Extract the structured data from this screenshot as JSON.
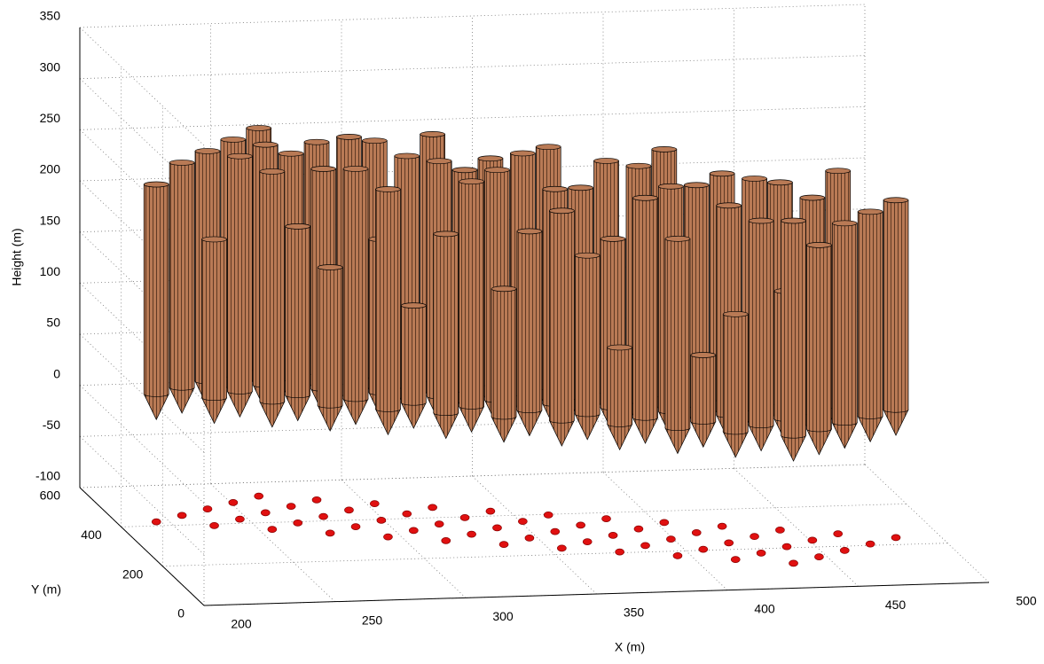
{
  "chart_data": {
    "type": "cylinders3d",
    "x_label": "X (m)",
    "y_label": "Y (m)",
    "z_label": "Height (m)",
    "xlim": [
      200,
      500
    ],
    "ylim": [
      0,
      600
    ],
    "zlim": [
      -100,
      350
    ],
    "xticks": [
      200,
      250,
      300,
      350,
      400,
      450,
      500
    ],
    "yticks": [
      0,
      200,
      400,
      600
    ],
    "zticks": [
      -100,
      -50,
      0,
      50,
      100,
      150,
      200,
      250,
      300,
      350
    ],
    "grid": true,
    "color": "#b97a55",
    "marker_color": "#e01010",
    "cylinder_bottom": 25,
    "tip": 0,
    "x": [
      215,
      235,
      255,
      275,
      295,
      315,
      335,
      355,
      375,
      395,
      415,
      435,
      227,
      247,
      267,
      287,
      307,
      327,
      347,
      367,
      387,
      407,
      427,
      447,
      239,
      259,
      279,
      299,
      319,
      339,
      359,
      379,
      399,
      419,
      439,
      459,
      251,
      271,
      291,
      311,
      331,
      351,
      371,
      391,
      411,
      431,
      451,
      471,
      263,
      283,
      303,
      323,
      343,
      363,
      383,
      403,
      423,
      443,
      463,
      483
    ],
    "y": [
      420,
      393,
      366,
      339,
      312,
      285,
      258,
      231,
      204,
      177,
      150,
      123,
      448,
      421,
      394,
      367,
      340,
      313,
      286,
      259,
      232,
      205,
      178,
      151,
      476,
      449,
      422,
      395,
      368,
      341,
      314,
      287,
      260,
      233,
      206,
      179,
      504,
      477,
      450,
      423,
      396,
      369,
      342,
      315,
      288,
      261,
      234,
      207,
      532,
      505,
      478,
      451,
      424,
      397,
      370,
      343,
      316,
      289,
      262,
      235
    ],
    "values": [
      230,
      180,
      250,
      160,
      240,
      200,
      150,
      230,
      100,
      210,
      140,
      235,
      245,
      255,
      190,
      250,
      120,
      245,
      200,
      180,
      240,
      90,
      225,
      205,
      250,
      260,
      240,
      175,
      255,
      250,
      235,
      190,
      245,
      230,
      150,
      220,
      255,
      245,
      265,
      250,
      240,
      260,
      230,
      255,
      240,
      250,
      235,
      225,
      260,
      250,
      255,
      265,
      245,
      260,
      250,
      265,
      245,
      240,
      255,
      230
    ]
  }
}
